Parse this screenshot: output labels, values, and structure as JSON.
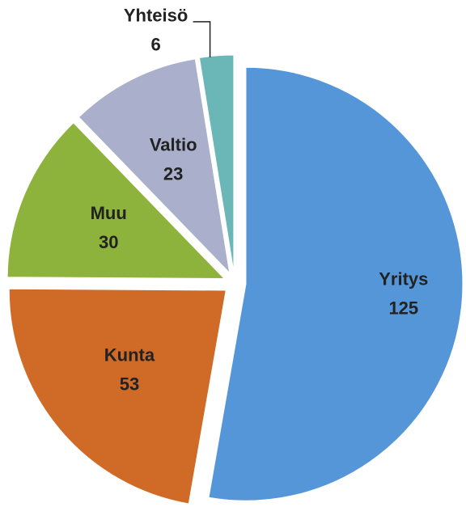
{
  "chart_data": {
    "type": "pie",
    "categories": [
      "Yritys",
      "Kunta",
      "Muu",
      "Valtio",
      "Yhteisö"
    ],
    "values": [
      125,
      53,
      30,
      23,
      6
    ],
    "colors": [
      "#5596d8",
      "#cf6a27",
      "#8db33c",
      "#aab0cc",
      "#6bb7b8"
    ]
  }
}
